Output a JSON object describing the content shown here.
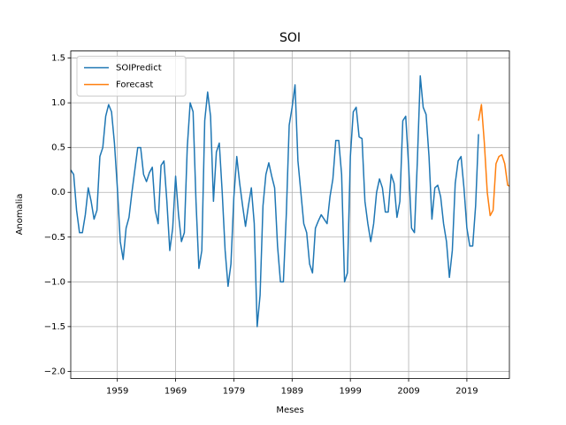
{
  "chart_data": {
    "type": "line",
    "title": "SOI",
    "x_label": "Meses",
    "y_label": "Anomalia",
    "xlim": [
      1951,
      2026.3
    ],
    "ylim": [
      -2.08,
      1.58
    ],
    "xticks": [
      1959,
      1969,
      1979,
      1989,
      1999,
      2009,
      2019
    ],
    "yticks": [
      {
        "value": -2,
        "label": "−2.0"
      },
      {
        "value": -1.5,
        "label": "−1.5"
      },
      {
        "value": -1,
        "label": "−1.0"
      },
      {
        "value": -0.5,
        "label": "−0.5"
      },
      {
        "value": 0,
        "label": "0.0"
      },
      0.5,
      {
        "value": 1,
        "label": "1.0"
      },
      1.5
    ],
    "grid": true,
    "legend": "upper-left",
    "series": [
      {
        "name": "SOIPredict",
        "color": "#1f77b4",
        "x": [
          1951,
          1951.5,
          1952,
          1952.5,
          1953,
          1953.5,
          1954,
          1954.5,
          1955,
          1955.5,
          1956,
          1956.5,
          1957,
          1957.5,
          1958,
          1958.5,
          1959,
          1959.5,
          1960,
          1960.5,
          1961,
          1961.5,
          1962,
          1962.5,
          1963,
          1963.5,
          1964,
          1964.5,
          1965,
          1965.5,
          1966,
          1966.5,
          1967,
          1967.5,
          1968,
          1968.5,
          1969,
          1969.5,
          1970,
          1970.5,
          1971,
          1971.5,
          1972,
          1972.5,
          1973,
          1973.5,
          1974,
          1974.5,
          1975,
          1975.5,
          1976,
          1976.5,
          1977,
          1977.5,
          1978,
          1978.5,
          1979,
          1979.5,
          1980,
          1980.5,
          1981,
          1981.5,
          1982,
          1982.5,
          1983,
          1983.5,
          1984,
          1984.5,
          1985,
          1985.5,
          1986,
          1986.5,
          1987,
          1987.5,
          1988,
          1988.5,
          1989,
          1989.5,
          1990,
          1990.5,
          1991,
          1991.5,
          1992,
          1992.5,
          1993,
          1993.5,
          1994,
          1994.5,
          1995,
          1995.5,
          1996,
          1996.5,
          1997,
          1997.5,
          1998,
          1998.5,
          1999,
          1999.5,
          2000,
          2000.5,
          2001,
          2001.5,
          2002,
          2002.5,
          2003,
          2003.5,
          2004,
          2004.5,
          2005,
          2005.5,
          2006,
          2006.5,
          2007,
          2007.5,
          2008,
          2008.5,
          2009,
          2009.5,
          2010,
          2010.5,
          2011,
          2011.5,
          2012,
          2012.5,
          2013,
          2013.5,
          2014,
          2014.5,
          2015,
          2015.5,
          2016,
          2016.5,
          2017,
          2017.5,
          2018,
          2018.5,
          2019,
          2019.5,
          2020,
          2020.5,
          2021
        ],
        "values": [
          0.25,
          0.2,
          -0.2,
          -0.45,
          -0.45,
          -0.25,
          0.05,
          -0.1,
          -0.3,
          -0.2,
          0.4,
          0.5,
          0.85,
          0.98,
          0.9,
          0.55,
          0.05,
          -0.55,
          -0.75,
          -0.4,
          -0.28,
          0.0,
          0.25,
          0.5,
          0.5,
          0.2,
          0.12,
          0.22,
          0.28,
          -0.2,
          -0.35,
          0.3,
          0.35,
          -0.1,
          -0.65,
          -0.4,
          0.18,
          -0.25,
          -0.55,
          -0.45,
          0.5,
          1.0,
          0.9,
          -0.1,
          -0.85,
          -0.65,
          0.8,
          1.12,
          0.85,
          -0.1,
          0.45,
          0.55,
          0.0,
          -0.65,
          -1.05,
          -0.8,
          -0.05,
          0.4,
          0.1,
          -0.15,
          -0.38,
          -0.15,
          0.05,
          -0.35,
          -1.5,
          -1.15,
          -0.15,
          0.2,
          0.33,
          0.18,
          0.05,
          -0.6,
          -1.0,
          -1.0,
          -0.25,
          0.75,
          0.95,
          1.2,
          0.35,
          0.0,
          -0.35,
          -0.45,
          -0.8,
          -0.9,
          -0.4,
          -0.32,
          -0.25,
          -0.3,
          -0.35,
          -0.05,
          0.15,
          0.58,
          0.58,
          0.2,
          -1.0,
          -0.9,
          0.4,
          0.9,
          0.95,
          0.62,
          0.6,
          -0.1,
          -0.35,
          -0.55,
          -0.35,
          0.0,
          0.15,
          0.05,
          -0.22,
          -0.22,
          0.2,
          0.1,
          -0.28,
          -0.1,
          0.8,
          0.85,
          0.3,
          -0.4,
          -0.45,
          0.35,
          1.3,
          0.95,
          0.87,
          0.4,
          -0.3,
          0.05,
          0.08,
          -0.05,
          -0.35,
          -0.55,
          -0.95,
          -0.65,
          0.1,
          0.35,
          0.4,
          0.05,
          -0.4,
          -0.6,
          -0.6,
          -0.15,
          0.65
        ]
      },
      {
        "name": "Forecast",
        "color": "#ff7f0e",
        "x": [
          2021,
          2021.5,
          2022,
          2022.5,
          2023,
          2023.5,
          2024,
          2024.5,
          2025,
          2025.5,
          2026,
          2026.3
        ],
        "values": [
          0.8,
          0.98,
          0.55,
          0.0,
          -0.26,
          -0.2,
          0.32,
          0.4,
          0.42,
          0.32,
          0.08,
          0.07
        ]
      }
    ]
  }
}
